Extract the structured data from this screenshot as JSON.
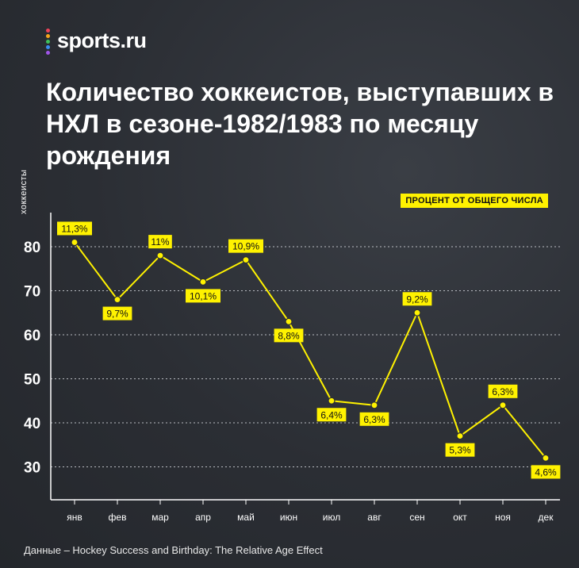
{
  "brand": {
    "name": "sports.ru"
  },
  "title": "Количество хоккеистов, выступавших в НХЛ в сезоне-1982/1983 по месяцу рождения",
  "source": "Данные – Hockey Success and Birthday: The Relative Age Effect",
  "colors": {
    "accent": "#fff200",
    "background": "#2b2e34",
    "text": "#ffffff"
  },
  "chart_data": {
    "type": "line",
    "title": "Количество хоккеистов, выступавших в НХЛ в сезоне-1982/1983 по месяцу рождения",
    "ylabel": "хоккеисты",
    "xlabel": "",
    "legend": "ПРОЦЕНТ ОТ ОБЩЕГО ЧИСЛА",
    "legend_position": "top-right",
    "grid": true,
    "ylim": [
      25,
      85
    ],
    "yticks": [
      30,
      40,
      50,
      60,
      70,
      80
    ],
    "categories": [
      "янв",
      "фев",
      "мар",
      "апр",
      "май",
      "июн",
      "июл",
      "авг",
      "сен",
      "окт",
      "ноя",
      "дек"
    ],
    "values": [
      81,
      68,
      78,
      72,
      77,
      63,
      45,
      44,
      65,
      37,
      44,
      32
    ],
    "data_labels": [
      "11,3%",
      "9,7%",
      "11%",
      "10,1%",
      "10,9%",
      "8,8%",
      "6,4%",
      "6,3%",
      "9,2%",
      "5,3%",
      "6,3%",
      "4,6%"
    ],
    "label_above": [
      true,
      false,
      true,
      false,
      true,
      false,
      false,
      false,
      true,
      false,
      true,
      false
    ]
  }
}
